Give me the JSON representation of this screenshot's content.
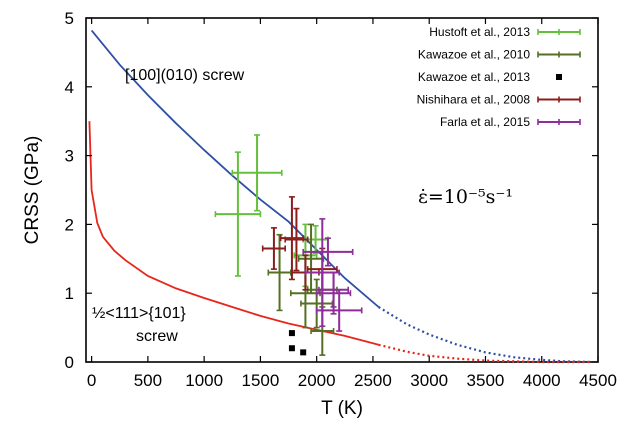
{
  "chart_data": {
    "type": "scatter",
    "xlabel": "T (K)",
    "ylabel": "CRSS (GPa)",
    "xlim": [
      -50,
      4500
    ],
    "ylim": [
      0,
      5
    ],
    "xticks": [
      "0",
      "500",
      "1000",
      "1500",
      "2000",
      "2500",
      "3000",
      "3500",
      "4000",
      "4500"
    ],
    "yticks": [
      "0",
      "1",
      "2",
      "3",
      "4",
      "5"
    ],
    "grid": false,
    "legend_position": "top-right",
    "annotations": {
      "screw_100": "[100](010) screw",
      "screw_111_line1": "½<111>{101}",
      "screw_111_line2": "screw",
      "strain_rate": "ε̇=10⁻⁵s⁻¹"
    },
    "curves": [
      {
        "label": "[100](010) screw",
        "color": "#2e4fa3",
        "solid_until": 2550,
        "points": [
          [
            0,
            4.82
          ],
          [
            250,
            4.32
          ],
          [
            500,
            3.88
          ],
          [
            750,
            3.47
          ],
          [
            1000,
            3.08
          ],
          [
            1250,
            2.71
          ],
          [
            1500,
            2.36
          ],
          [
            1750,
            2.04
          ],
          [
            2000,
            1.63
          ],
          [
            2250,
            1.22
          ],
          [
            2550,
            0.8
          ],
          [
            2800,
            0.55
          ],
          [
            3000,
            0.4
          ],
          [
            3250,
            0.25
          ],
          [
            3500,
            0.14
          ],
          [
            3750,
            0.07
          ],
          [
            4000,
            0.03
          ],
          [
            4200,
            0.01
          ],
          [
            4450,
            0.0
          ]
        ]
      },
      {
        "label": "½<111>{101} screw",
        "color": "#e8251b",
        "solid_until": 2550,
        "points": [
          [
            -20,
            3.5
          ],
          [
            0,
            2.5
          ],
          [
            50,
            2.02
          ],
          [
            100,
            1.82
          ],
          [
            200,
            1.62
          ],
          [
            300,
            1.48
          ],
          [
            500,
            1.25
          ],
          [
            750,
            1.07
          ],
          [
            1000,
            0.93
          ],
          [
            1250,
            0.8
          ],
          [
            1500,
            0.67
          ],
          [
            1750,
            0.56
          ],
          [
            2000,
            0.47
          ],
          [
            2250,
            0.38
          ],
          [
            2550,
            0.25
          ],
          [
            2800,
            0.15
          ],
          [
            3000,
            0.09
          ],
          [
            3250,
            0.05
          ],
          [
            3500,
            0.02
          ],
          [
            4000,
            0.0
          ],
          [
            4450,
            0.0
          ]
        ]
      }
    ],
    "series": [
      {
        "name": "Hustoft et al., 2013",
        "color": "#63c03a",
        "points": [
          {
            "x": 1470,
            "y": 2.75,
            "xerr": 220,
            "yerr": 0.55
          },
          {
            "x": 1300,
            "y": 2.15,
            "xerr": 200,
            "yerr": 0.9
          },
          {
            "x": 1900,
            "y": 1.55,
            "xerr": 100,
            "yerr": 0.45
          },
          {
            "x": 1990,
            "y": 1.78,
            "xerr": 110,
            "yerr": 0.2
          }
        ]
      },
      {
        "name": "Kawazoe et al., 2010",
        "color": "#556f24",
        "points": [
          {
            "x": 1670,
            "y": 1.3,
            "xerr": 100,
            "yerr": 0.55
          },
          {
            "x": 1950,
            "y": 1.5,
            "xerr": 110,
            "yerr": 0.5
          },
          {
            "x": 2050,
            "y": 1.05,
            "xerr": 130,
            "yerr": 0.3
          },
          {
            "x": 1900,
            "y": 1.0,
            "xerr": 130,
            "yerr": 0.5
          },
          {
            "x": 2000,
            "y": 0.85,
            "xerr": 140,
            "yerr": 0.35
          },
          {
            "x": 2050,
            "y": 0.45,
            "xerr": 100,
            "yerr": 0.35
          }
        ]
      },
      {
        "name": "Kawazoe et al., 2013",
        "color": "#000000",
        "points": [
          {
            "x": 1780,
            "y": 0.42
          },
          {
            "x": 1780,
            "y": 0.2
          },
          {
            "x": 1880,
            "y": 0.14
          }
        ]
      },
      {
        "name": "Nishihara et al., 2008",
        "color": "#8b1d1d",
        "points": [
          {
            "x": 1620,
            "y": 1.65,
            "xerr": 100,
            "yerr": 0.3
          },
          {
            "x": 1780,
            "y": 1.8,
            "xerr": 100,
            "yerr": 0.6
          },
          {
            "x": 1820,
            "y": 1.78,
            "xerr": 100,
            "yerr": 0.45
          },
          {
            "x": 2050,
            "y": 1.35,
            "xerr": 130,
            "yerr": 0.3
          },
          {
            "x": 1900,
            "y": 1.3,
            "xerr": 120,
            "yerr": 0.25
          }
        ]
      },
      {
        "name": "Farla et al., 2015",
        "color": "#8e2d9b",
        "points": [
          {
            "x": 2100,
            "y": 1.6,
            "xerr": 220,
            "yerr": 0.2
          },
          {
            "x": 2050,
            "y": 1.3,
            "xerr": 150,
            "yerr": 0.78
          },
          {
            "x": 2150,
            "y": 1.05,
            "xerr": 130,
            "yerr": 0.25
          },
          {
            "x": 2150,
            "y": 1.0,
            "xerr": 150,
            "yerr": 0.3
          },
          {
            "x": 2200,
            "y": 0.75,
            "xerr": 200,
            "yerr": 0.3
          }
        ]
      }
    ]
  }
}
